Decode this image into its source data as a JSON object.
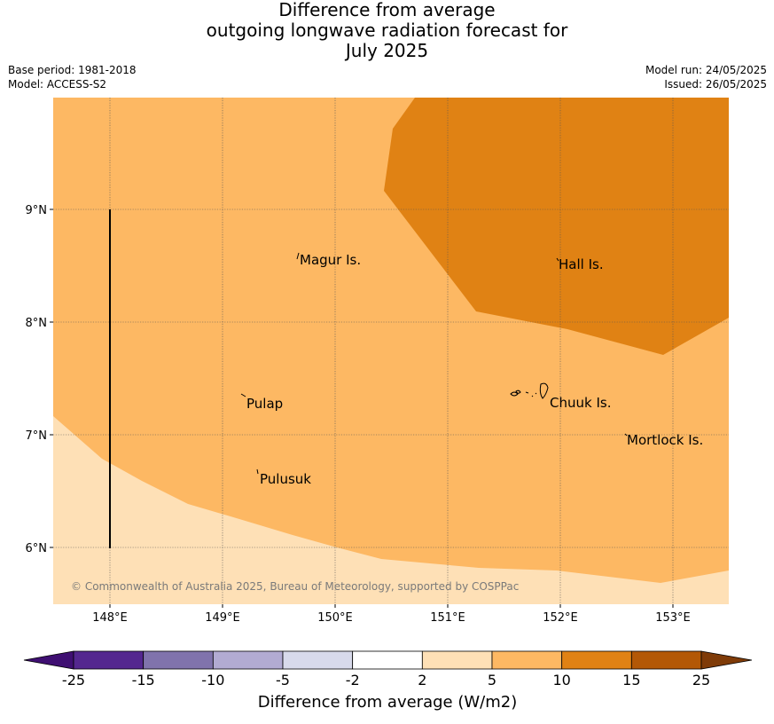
{
  "header": {
    "title_lines": [
      "Difference from average",
      "outgoing longwave radiation forecast for",
      "July 2025"
    ],
    "base_period": "Base period: 1981-2018",
    "model": "Model: ACCESS-S2",
    "model_run": "Model run: 24/05/2025",
    "issued": "Issued: 26/05/2025"
  },
  "map": {
    "lon_ticks": [
      "148°E",
      "149°E",
      "150°E",
      "151°E",
      "152°E",
      "153°E"
    ],
    "lat_ticks": [
      "9°N",
      "8°N",
      "7°N",
      "6°N"
    ],
    "places": [
      {
        "name": "Magur Is."
      },
      {
        "name": "Hall Is."
      },
      {
        "name": "Pulap"
      },
      {
        "name": "Chuuk Is."
      },
      {
        "name": "Mortlock Is."
      },
      {
        "name": "Pulusuk"
      }
    ],
    "copyright": "© Commonwealth of Australia 2025, Bureau of Meteorology, supported by COSPPac"
  },
  "colorbar": {
    "ticks": [
      "-25",
      "-15",
      "-10",
      "-5",
      "-2",
      "2",
      "5",
      "10",
      "15",
      "25"
    ],
    "colors": [
      "#3f0f72",
      "#54278f",
      "#8073ac",
      "#b2abd2",
      "#d8daeb",
      "#ffffff",
      "#fee0b6",
      "#fdb863",
      "#e08214",
      "#b35806",
      "#7f3b08"
    ],
    "label": "Difference from average (W/m2)"
  },
  "fills": {
    "light": "#fee0b6",
    "medium": "#fdb863",
    "dark": "#e08214"
  }
}
